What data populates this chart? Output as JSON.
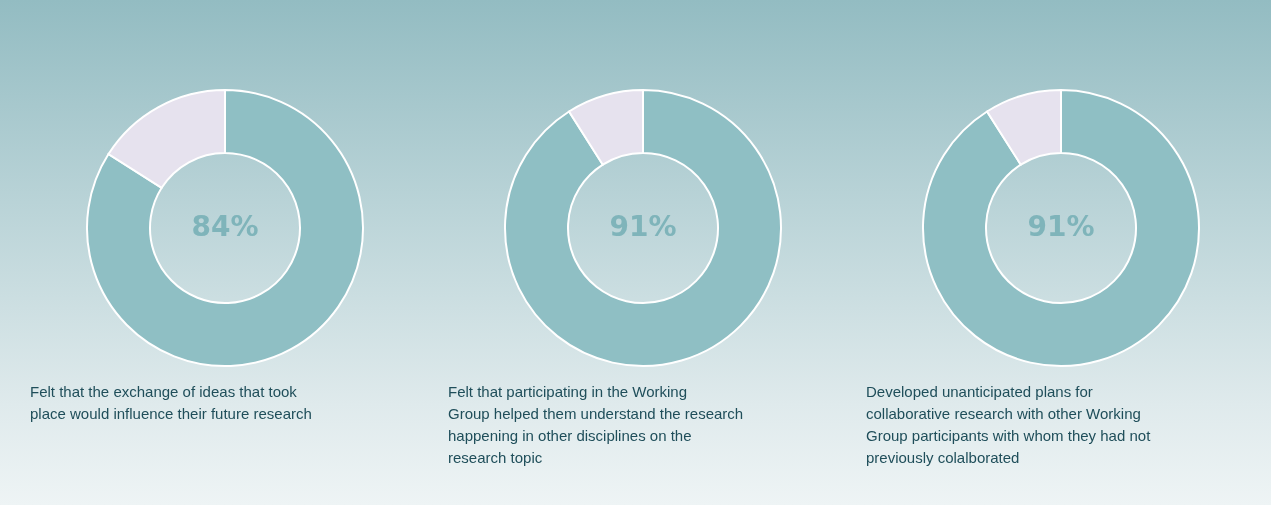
{
  "chart_data": [
    {
      "type": "donut",
      "categories": [
        null,
        null
      ],
      "values": [
        84,
        16
      ],
      "colors": [
        "#8fbfc4",
        "#e6e2ee"
      ],
      "value_labels": [
        "84%",
        null
      ],
      "annotations": [
        "Felt that the exchange of ideas that took place would influence their future research"
      ]
    },
    {
      "type": "donut",
      "categories": [
        null,
        null
      ],
      "values": [
        91,
        9
      ],
      "colors": [
        "#8fbfc4",
        "#e6e2ee"
      ],
      "value_labels": [
        "91%",
        null
      ],
      "annotations": [
        "Felt  that participating in the Working Group helped them  understand the research happening in other disciplines on the research topic"
      ]
    },
    {
      "type": "donut",
      "categories": [
        null,
        null
      ],
      "values": [
        91,
        9
      ],
      "colors": [
        "#8fbfc4",
        "#e6e2ee"
      ],
      "value_labels": [
        "91%",
        null
      ],
      "annotations": [
        "Developed unanticipated plans for collaborative research with other Working Group participants with whom they had not previously colalborated"
      ]
    }
  ]
}
